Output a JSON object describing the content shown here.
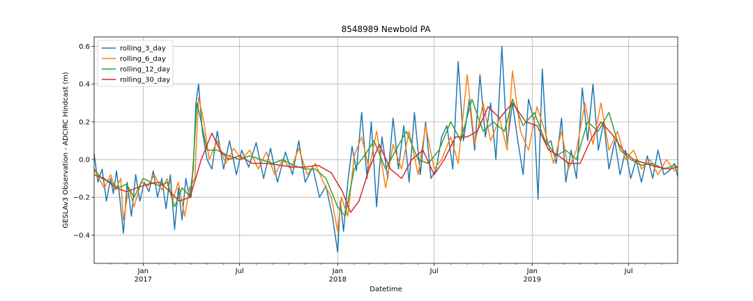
{
  "chart_data": {
    "type": "line",
    "title": "8548989 Newbold PA",
    "xlabel": "Datetime",
    "ylabel": "GESLAv3 Observation - ADCIRC Hindcast (m)",
    "xlim": [
      "2016-10-01",
      "2019-10-01"
    ],
    "ylim": [
      -0.55,
      0.65
    ],
    "grid": true,
    "legend_position": "top-left",
    "y_ticks": [
      -0.4,
      -0.2,
      0.0,
      0.2,
      0.4,
      0.6
    ],
    "y_tick_labels": [
      "−0.4",
      "−0.2",
      "0.0",
      "0.2",
      "0.4",
      "0.6"
    ],
    "x_ticks": [
      {
        "date": "2017-01-01",
        "label": "Jan",
        "sublabel": "2017",
        "major": true
      },
      {
        "date": "2017-07-01",
        "label": "Jul",
        "sublabel": "",
        "major": true
      },
      {
        "date": "2018-01-01",
        "label": "Jan",
        "sublabel": "2018",
        "major": true
      },
      {
        "date": "2018-07-01",
        "label": "Jul",
        "sublabel": "",
        "major": true
      },
      {
        "date": "2019-01-01",
        "label": "Jan",
        "sublabel": "2019",
        "major": true
      },
      {
        "date": "2019-07-01",
        "label": "Jul",
        "sublabel": "",
        "major": true
      }
    ],
    "minor_x_ticks": [
      "2016-11-01",
      "2016-12-01",
      "2017-02-01",
      "2017-03-01",
      "2017-04-01",
      "2017-05-01",
      "2017-06-01",
      "2017-08-01",
      "2017-09-01",
      "2017-10-01",
      "2017-11-01",
      "2017-12-01",
      "2018-02-01",
      "2018-03-01",
      "2018-04-01",
      "2018-05-01",
      "2018-06-01",
      "2018-08-01",
      "2018-09-01",
      "2018-10-01",
      "2018-11-01",
      "2018-12-01",
      "2019-02-01",
      "2019-03-01",
      "2019-04-01",
      "2019-05-01",
      "2019-06-01",
      "2019-08-01",
      "2019-09-01"
    ],
    "series": [
      {
        "name": "rolling_3_day",
        "color": "#1f77b4",
        "x": [
          "2016-10-01",
          "2016-10-08",
          "2016-10-16",
          "2016-10-24",
          "2016-11-01",
          "2016-11-06",
          "2016-11-12",
          "2016-11-18",
          "2016-11-25",
          "2016-12-02",
          "2016-12-10",
          "2016-12-18",
          "2016-12-26",
          "2017-01-03",
          "2017-01-12",
          "2017-01-20",
          "2017-01-28",
          "2017-02-05",
          "2017-02-13",
          "2017-02-21",
          "2017-03-01",
          "2017-03-08",
          "2017-03-15",
          "2017-03-22",
          "2017-03-29",
          "2017-04-05",
          "2017-04-10",
          "2017-04-15",
          "2017-04-22",
          "2017-05-01",
          "2017-05-10",
          "2017-05-20",
          "2017-06-01",
          "2017-06-12",
          "2017-06-25",
          "2017-07-05",
          "2017-07-18",
          "2017-08-01",
          "2017-08-15",
          "2017-08-28",
          "2017-09-10",
          "2017-09-25",
          "2017-10-08",
          "2017-10-20",
          "2017-11-01",
          "2017-11-15",
          "2017-11-28",
          "2017-12-10",
          "2017-12-22",
          "2018-01-01",
          "2018-01-06",
          "2018-01-12",
          "2018-01-20",
          "2018-01-28",
          "2018-02-05",
          "2018-02-15",
          "2018-02-25",
          "2018-03-05",
          "2018-03-15",
          "2018-03-25",
          "2018-04-05",
          "2018-04-15",
          "2018-04-25",
          "2018-05-05",
          "2018-05-15",
          "2018-05-25",
          "2018-06-05",
          "2018-06-15",
          "2018-06-25",
          "2018-07-05",
          "2018-07-15",
          "2018-07-25",
          "2018-08-05",
          "2018-08-15",
          "2018-08-25",
          "2018-09-05",
          "2018-09-15",
          "2018-09-25",
          "2018-10-05",
          "2018-10-15",
          "2018-10-25",
          "2018-11-05",
          "2018-11-15",
          "2018-11-25",
          "2018-12-05",
          "2018-12-15",
          "2018-12-25",
          "2019-01-05",
          "2019-01-12",
          "2019-01-20",
          "2019-01-28",
          "2019-02-05",
          "2019-02-15",
          "2019-02-25",
          "2019-03-05",
          "2019-03-15",
          "2019-03-25",
          "2019-04-05",
          "2019-04-15",
          "2019-04-25",
          "2019-05-05",
          "2019-05-15",
          "2019-05-25",
          "2019-06-05",
          "2019-06-15",
          "2019-06-25",
          "2019-07-05",
          "2019-07-15",
          "2019-07-25",
          "2019-08-05",
          "2019-08-15",
          "2019-08-25",
          "2019-09-05",
          "2019-09-15",
          "2019-09-25",
          "2019-10-01"
        ],
        "values": [
          0.03,
          -0.12,
          -0.05,
          -0.22,
          -0.1,
          -0.18,
          -0.06,
          -0.2,
          -0.39,
          -0.12,
          -0.3,
          -0.08,
          -0.22,
          -0.12,
          -0.17,
          -0.06,
          -0.2,
          -0.1,
          -0.26,
          -0.08,
          -0.37,
          -0.15,
          -0.32,
          -0.1,
          -0.2,
          -0.05,
          0.3,
          0.4,
          0.15,
          0.0,
          -0.05,
          0.15,
          -0.05,
          0.1,
          -0.08,
          0.05,
          -0.04,
          0.09,
          -0.1,
          0.06,
          -0.12,
          0.04,
          -0.08,
          0.1,
          -0.12,
          -0.04,
          -0.2,
          -0.14,
          -0.3,
          -0.49,
          -0.22,
          -0.38,
          -0.12,
          0.07,
          -0.06,
          0.25,
          -0.1,
          0.2,
          -0.25,
          0.12,
          -0.1,
          0.22,
          -0.05,
          0.18,
          -0.12,
          0.25,
          -0.08,
          0.2,
          -0.1,
          -0.05,
          0.12,
          0.18,
          -0.05,
          0.52,
          0.1,
          0.32,
          0.05,
          0.45,
          0.12,
          0.3,
          0.0,
          0.6,
          0.08,
          0.3,
          0.1,
          -0.08,
          0.32,
          0.2,
          -0.21,
          0.48,
          0.08,
          0.1,
          -0.02,
          0.22,
          -0.12,
          0.05,
          -0.1,
          0.38,
          0.1,
          0.4,
          0.05,
          0.2,
          -0.05,
          0.1,
          -0.08,
          0.05,
          -0.1,
          0.0,
          -0.12,
          0.02,
          -0.1,
          0.05,
          -0.08,
          -0.06,
          -0.02,
          -0.09
        ]
      },
      {
        "name": "rolling_6_day",
        "color": "#ff7f0e",
        "x": [
          "2016-10-01",
          "2016-10-10",
          "2016-10-20",
          "2016-11-01",
          "2016-11-10",
          "2016-11-20",
          "2016-11-25",
          "2016-12-05",
          "2016-12-15",
          "2016-12-28",
          "2017-01-10",
          "2017-01-22",
          "2017-02-05",
          "2017-02-15",
          "2017-02-25",
          "2017-03-08",
          "2017-03-20",
          "2017-03-29",
          "2017-04-08",
          "2017-04-15",
          "2017-04-25",
          "2017-05-05",
          "2017-05-20",
          "2017-06-05",
          "2017-06-20",
          "2017-07-05",
          "2017-07-20",
          "2017-08-05",
          "2017-08-20",
          "2017-09-05",
          "2017-09-20",
          "2017-10-05",
          "2017-10-20",
          "2017-11-05",
          "2017-11-20",
          "2017-12-05",
          "2017-12-20",
          "2018-01-01",
          "2018-01-08",
          "2018-01-20",
          "2018-02-01",
          "2018-02-15",
          "2018-03-01",
          "2018-03-15",
          "2018-04-01",
          "2018-04-15",
          "2018-05-01",
          "2018-05-15",
          "2018-06-01",
          "2018-06-15",
          "2018-07-01",
          "2018-07-15",
          "2018-08-01",
          "2018-08-15",
          "2018-09-01",
          "2018-09-15",
          "2018-10-01",
          "2018-10-15",
          "2018-11-01",
          "2018-11-15",
          "2018-11-25",
          "2018-12-10",
          "2018-12-25",
          "2019-01-10",
          "2019-01-25",
          "2019-02-10",
          "2019-02-25",
          "2019-03-10",
          "2019-03-25",
          "2019-04-10",
          "2019-04-25",
          "2019-05-10",
          "2019-05-25",
          "2019-06-10",
          "2019-06-25",
          "2019-07-10",
          "2019-07-25",
          "2019-08-10",
          "2019-08-25",
          "2019-09-10",
          "2019-09-25",
          "2019-10-01"
        ],
        "values": [
          -0.05,
          -0.1,
          -0.15,
          -0.08,
          -0.16,
          -0.1,
          -0.32,
          -0.15,
          -0.25,
          -0.12,
          -0.14,
          -0.08,
          -0.16,
          -0.1,
          -0.22,
          -0.12,
          -0.3,
          -0.15,
          -0.1,
          0.33,
          0.2,
          0.0,
          0.1,
          -0.02,
          0.06,
          0.0,
          0.05,
          -0.05,
          0.04,
          -0.08,
          0.0,
          -0.05,
          0.06,
          -0.08,
          -0.02,
          -0.12,
          -0.2,
          -0.38,
          -0.2,
          -0.3,
          0.02,
          0.12,
          -0.05,
          0.15,
          -0.15,
          0.08,
          -0.05,
          0.15,
          -0.08,
          0.18,
          -0.05,
          0.0,
          0.12,
          -0.02,
          0.45,
          0.08,
          0.3,
          0.1,
          0.22,
          0.05,
          0.47,
          0.15,
          0.05,
          0.28,
          0.15,
          -0.02,
          0.15,
          -0.05,
          0.05,
          0.3,
          0.08,
          0.3,
          0.05,
          0.15,
          0.0,
          0.05,
          -0.05,
          0.0,
          -0.08,
          0.0,
          -0.06,
          -0.05
        ]
      },
      {
        "name": "rolling_12_day",
        "color": "#2ca02c",
        "x": [
          "2016-10-01",
          "2016-10-15",
          "2016-11-01",
          "2016-11-15",
          "2016-12-01",
          "2016-12-15",
          "2017-01-01",
          "2017-01-15",
          "2017-02-01",
          "2017-02-15",
          "2017-03-01",
          "2017-03-15",
          "2017-04-01",
          "2017-04-12",
          "2017-04-20",
          "2017-05-01",
          "2017-05-20",
          "2017-06-10",
          "2017-07-01",
          "2017-07-20",
          "2017-08-10",
          "2017-09-01",
          "2017-09-20",
          "2017-10-10",
          "2017-11-01",
          "2017-11-20",
          "2017-12-10",
          "2018-01-01",
          "2018-01-15",
          "2018-02-01",
          "2018-02-20",
          "2018-03-10",
          "2018-04-01",
          "2018-04-20",
          "2018-05-10",
          "2018-06-01",
          "2018-06-20",
          "2018-07-10",
          "2018-08-01",
          "2018-08-20",
          "2018-09-10",
          "2018-10-01",
          "2018-10-20",
          "2018-11-10",
          "2018-11-25",
          "2018-12-15",
          "2019-01-05",
          "2019-01-25",
          "2019-02-15",
          "2019-03-05",
          "2019-03-25",
          "2019-04-15",
          "2019-05-05",
          "2019-05-25",
          "2019-06-15",
          "2019-07-05",
          "2019-07-25",
          "2019-08-15",
          "2019-09-05",
          "2019-09-25",
          "2019-10-01"
        ],
        "values": [
          -0.05,
          -0.1,
          -0.12,
          -0.15,
          -0.13,
          -0.2,
          -0.1,
          -0.12,
          -0.14,
          -0.12,
          -0.25,
          -0.15,
          -0.2,
          0.3,
          0.2,
          0.05,
          0.05,
          0.02,
          0.0,
          0.02,
          0.0,
          -0.02,
          0.0,
          -0.03,
          -0.05,
          -0.05,
          -0.1,
          -0.25,
          -0.3,
          -0.05,
          0.02,
          0.1,
          -0.05,
          0.05,
          0.15,
          0.0,
          -0.02,
          0.05,
          0.2,
          0.1,
          0.32,
          0.15,
          0.2,
          0.15,
          0.32,
          0.18,
          0.25,
          0.1,
          0.02,
          0.05,
          0.0,
          0.2,
          0.15,
          0.25,
          0.05,
          0.0,
          -0.03,
          -0.02,
          -0.05,
          -0.03,
          -0.04
        ]
      },
      {
        "name": "rolling_30_day",
        "color": "#d62728",
        "x": [
          "2016-10-01",
          "2016-10-20",
          "2016-11-10",
          "2016-12-01",
          "2016-12-20",
          "2017-01-10",
          "2017-02-01",
          "2017-02-20",
          "2017-03-10",
          "2017-03-30",
          "2017-04-20",
          "2017-05-10",
          "2017-05-25",
          "2017-06-10",
          "2017-07-01",
          "2017-07-25",
          "2017-08-20",
          "2017-09-15",
          "2017-10-10",
          "2017-11-01",
          "2017-11-25",
          "2017-12-20",
          "2018-01-10",
          "2018-01-25",
          "2018-02-10",
          "2018-03-01",
          "2018-03-20",
          "2018-04-10",
          "2018-05-01",
          "2018-05-20",
          "2018-06-10",
          "2018-07-01",
          "2018-07-20",
          "2018-08-10",
          "2018-09-01",
          "2018-09-20",
          "2018-10-10",
          "2018-11-01",
          "2018-11-25",
          "2018-12-20",
          "2019-01-10",
          "2019-02-01",
          "2019-02-20",
          "2019-03-10",
          "2019-04-01",
          "2019-04-20",
          "2019-05-10",
          "2019-06-01",
          "2019-06-20",
          "2019-07-10",
          "2019-08-01",
          "2019-08-25",
          "2019-09-15",
          "2019-10-01"
        ],
        "values": [
          -0.08,
          -0.1,
          -0.15,
          -0.17,
          -0.15,
          -0.13,
          -0.12,
          -0.17,
          -0.22,
          -0.2,
          0.0,
          0.14,
          0.05,
          0.0,
          0.02,
          -0.02,
          -0.02,
          -0.03,
          -0.04,
          -0.04,
          -0.03,
          -0.07,
          -0.17,
          -0.28,
          -0.22,
          -0.05,
          0.08,
          -0.05,
          -0.1,
          0.0,
          0.05,
          -0.08,
          0.0,
          0.12,
          0.12,
          0.15,
          0.28,
          0.22,
          0.3,
          0.2,
          0.18,
          0.05,
          0.02,
          -0.02,
          -0.02,
          0.1,
          0.2,
          0.13,
          0.05,
          0.0,
          -0.02,
          -0.04,
          -0.05,
          -0.04
        ]
      }
    ]
  }
}
